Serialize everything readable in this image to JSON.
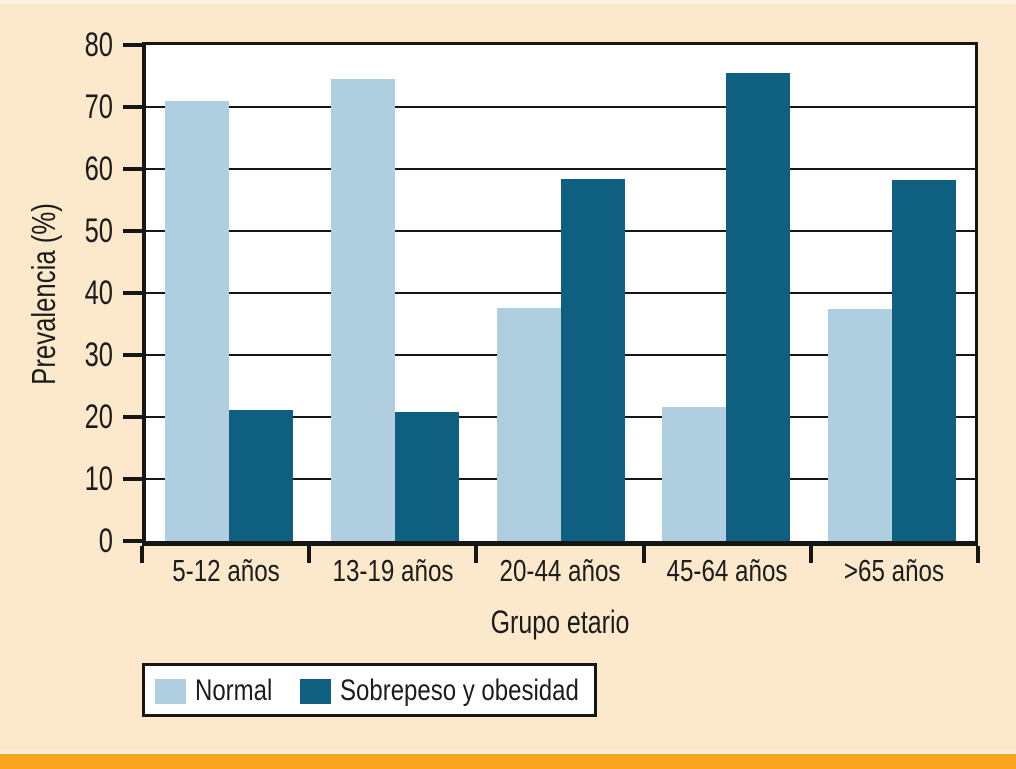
{
  "colors": {
    "background": "#FCE8CB",
    "background_top_highlight": "#FEF3E2",
    "stripe_gap": "#FDEFD9",
    "accent_stripe": "#F8A41E",
    "plot_background": "#FFFFFF",
    "axis": "#161616",
    "gridline": "#161616",
    "text": "#1c1c1c",
    "normal": "#AFCEE0",
    "overweight": "#0E5F80",
    "legend_border": "#161616",
    "legend_background": "#FFFFFF"
  },
  "chart_data": {
    "type": "bar",
    "title": "",
    "xlabel": "Grupo etario",
    "ylabel": "Prevalencia (%)",
    "ylim": [
      0,
      80
    ],
    "yticks": [
      0,
      10,
      20,
      30,
      40,
      50,
      60,
      70,
      80
    ],
    "grid": "horizontal",
    "legend_position": "bottom-left",
    "categories": [
      "5-12 años",
      "13-19 años",
      "20-44 años",
      "45-64 años",
      ">65 años"
    ],
    "series": [
      {
        "name": "Normal",
        "color_key": "normal",
        "values": [
          71,
          74.5,
          37.6,
          21.6,
          37.4
        ]
      },
      {
        "name": "Sobrepeso y obesidad",
        "color_key": "overweight",
        "values": [
          21.2,
          20.8,
          58.4,
          75.5,
          58.2
        ]
      }
    ]
  }
}
